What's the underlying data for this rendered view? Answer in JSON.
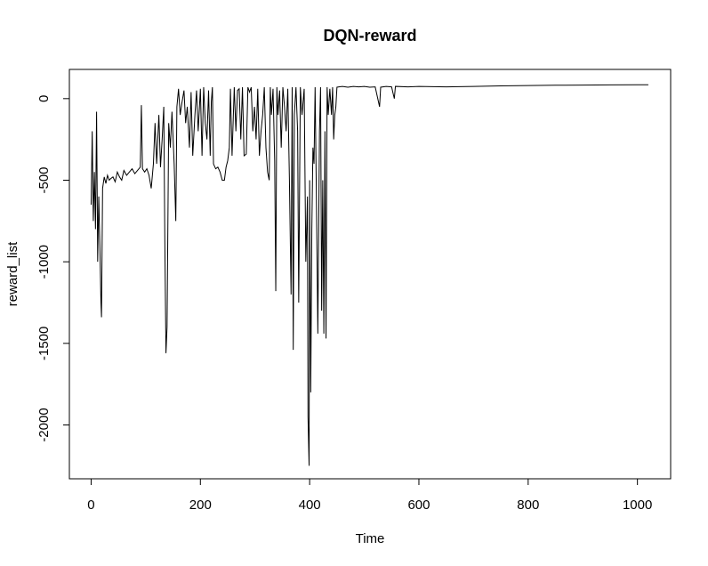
{
  "chart_data": {
    "type": "line",
    "title": "DQN-reward",
    "x_label": "Time",
    "y_label": "reward_list",
    "xlim": [
      -39.8,
      1060.8
    ],
    "ylim": [
      -2330,
      179
    ],
    "xticks": [
      0,
      200,
      400,
      600,
      800,
      1000
    ],
    "yticks": [
      0,
      -500,
      -1000,
      -1500,
      -2000
    ],
    "color": "#000000",
    "x": [
      0,
      2,
      4,
      6,
      8,
      10,
      12,
      14,
      16,
      18,
      19,
      21,
      24,
      27,
      30,
      33,
      36,
      40,
      44,
      48,
      52,
      56,
      60,
      65,
      70,
      75,
      80,
      85,
      90,
      92,
      94,
      98,
      102,
      106,
      110,
      114,
      117,
      120,
      124,
      127,
      130,
      133,
      135,
      137,
      139,
      142,
      145,
      148,
      152,
      155,
      157,
      160,
      163,
      166,
      170,
      173,
      176,
      180,
      183,
      186,
      190,
      193,
      196,
      200,
      203,
      206,
      209,
      212,
      215,
      218,
      220,
      222,
      224,
      228,
      232,
      236,
      240,
      244,
      247,
      250,
      253,
      255,
      258,
      262,
      265,
      268,
      271,
      274,
      277,
      280,
      284,
      287,
      290,
      293,
      296,
      299,
      302,
      305,
      308,
      311,
      314,
      317,
      320,
      323,
      326,
      328,
      330,
      333,
      336,
      338,
      340,
      342,
      345,
      348,
      351,
      354,
      357,
      360,
      363,
      366,
      368,
      370,
      372,
      375,
      378,
      380,
      383,
      386,
      390,
      393,
      396,
      397,
      399,
      400,
      402,
      404,
      406,
      408,
      410,
      412,
      415,
      418,
      420,
      422,
      424,
      426,
      428,
      430,
      432,
      434,
      437,
      440,
      442,
      444,
      446,
      448,
      450,
      460,
      470,
      480,
      490,
      500,
      510,
      520,
      528,
      530,
      540,
      550,
      555,
      557,
      580,
      600,
      650,
      700,
      750,
      800,
      850,
      900,
      950,
      1000,
      1020
    ],
    "values": [
      -650,
      -200,
      -750,
      -450,
      -800,
      -80,
      -1000,
      -600,
      -900,
      -1250,
      -1340,
      -550,
      -480,
      -520,
      -470,
      -500,
      -490,
      -480,
      -510,
      -450,
      -480,
      -500,
      -440,
      -470,
      -450,
      -430,
      -460,
      -440,
      -420,
      -40,
      -430,
      -450,
      -430,
      -470,
      -550,
      -400,
      -150,
      -400,
      -100,
      -420,
      -250,
      -50,
      -900,
      -1560,
      -1400,
      -150,
      -300,
      -80,
      -400,
      -750,
      -50,
      60,
      -100,
      -30,
      50,
      -150,
      -50,
      -300,
      40,
      -350,
      -100,
      50,
      -200,
      60,
      -350,
      70,
      -150,
      -250,
      50,
      -350,
      -20,
      70,
      -400,
      -430,
      -420,
      -450,
      -500,
      -500,
      -420,
      -380,
      -300,
      60,
      -350,
      70,
      -200,
      50,
      60,
      -250,
      70,
      -350,
      -340,
      70,
      40,
      70,
      -200,
      -50,
      -250,
      60,
      -350,
      -200,
      -100,
      70,
      -300,
      -450,
      -500,
      70,
      -100,
      60,
      -380,
      -1180,
      70,
      -100,
      50,
      -300,
      70,
      -50,
      -200,
      60,
      -500,
      -1200,
      70,
      -1540,
      -100,
      70,
      -200,
      -1250,
      70,
      -100,
      60,
      -1000,
      -600,
      -1950,
      -2250,
      -500,
      -1800,
      -800,
      -300,
      -400,
      70,
      -500,
      -1440,
      -200,
      70,
      -1300,
      -500,
      -1440,
      -200,
      -1470,
      70,
      -100,
      60,
      -100,
      70,
      -250,
      -100,
      -50,
      70,
      75,
      70,
      75,
      72,
      75,
      70,
      72,
      -50,
      70,
      75,
      72,
      0,
      75,
      72,
      75,
      72,
      75,
      78,
      80,
      82,
      83,
      84,
      85,
      85
    ]
  }
}
